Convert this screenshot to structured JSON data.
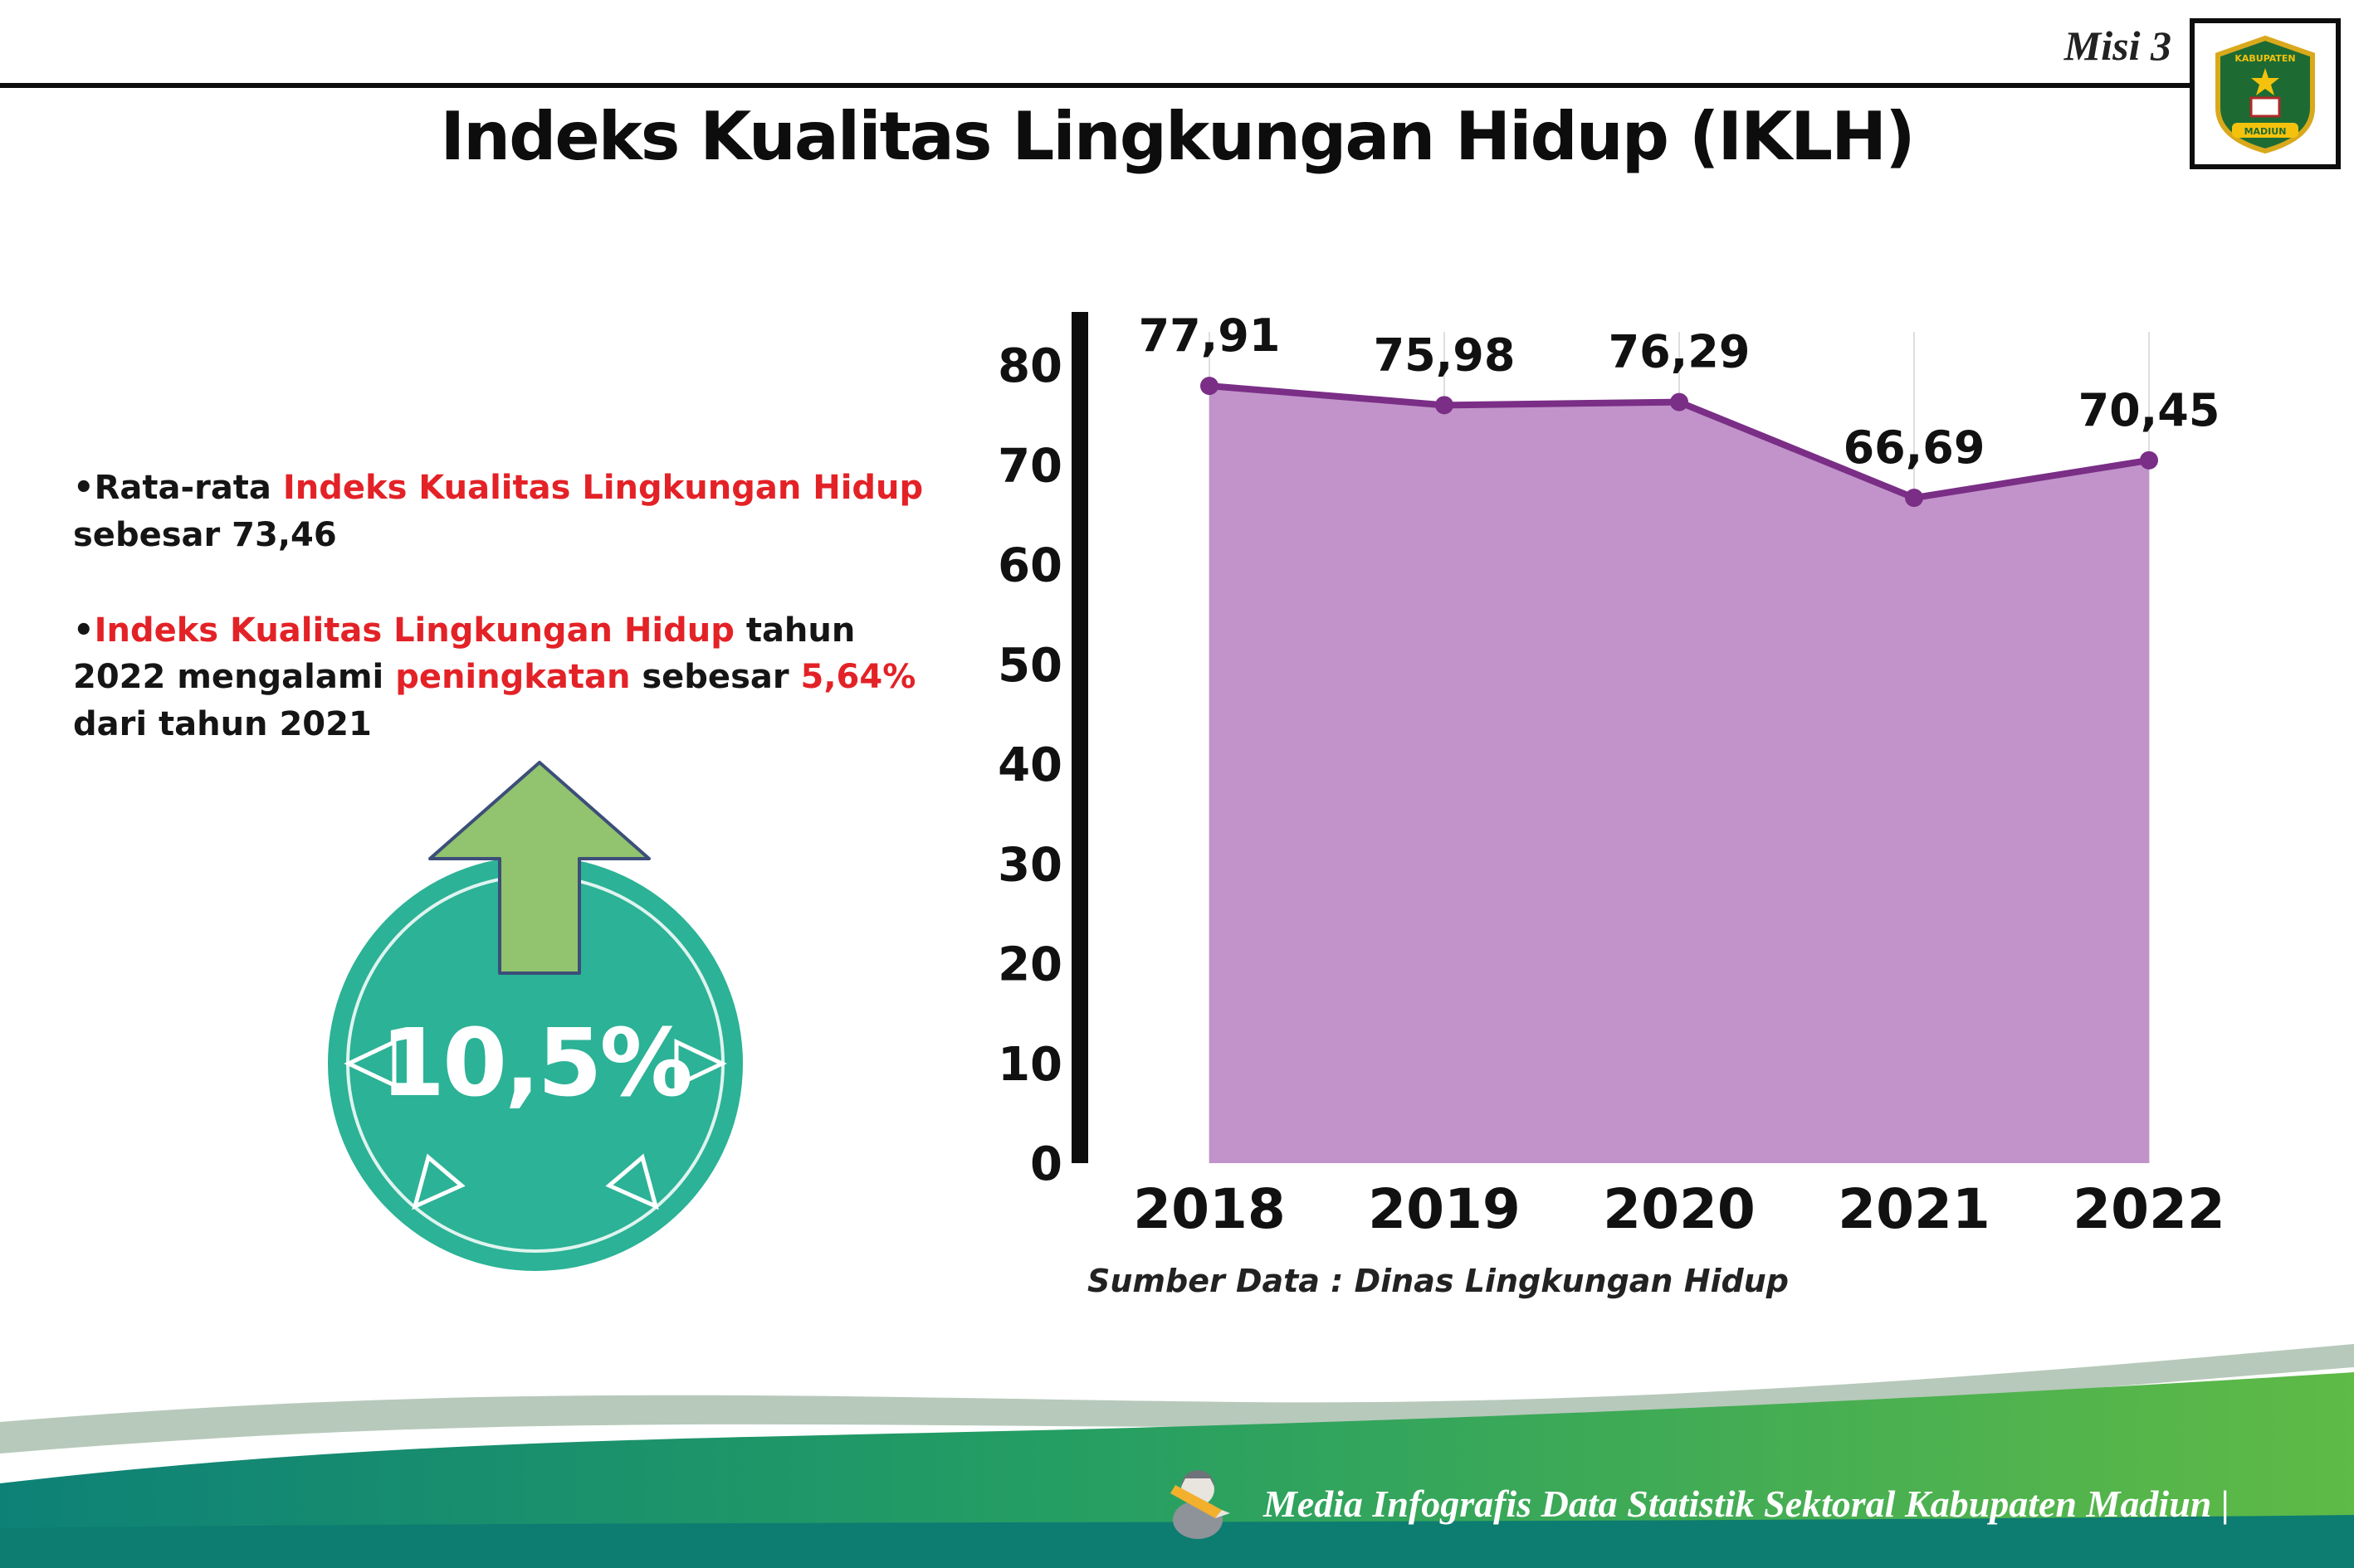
{
  "page": {
    "misi_label": "Misi 3",
    "title": "Indeks Kualitas Lingkungan Hidup (IKLH)"
  },
  "logo": {
    "line1": "KABUPATEN",
    "line2": "MADIUN"
  },
  "bullets": {
    "b1": {
      "seg1": "Rata-rata ",
      "seg2": "Indeks Kualitas Lingkungan Hidup",
      "seg3": " sebesar 73,46"
    },
    "b2": {
      "seg1": "Indeks Kualitas Lingkungan Hidup",
      "seg2": " tahun 2022 mengalami ",
      "seg3": "peningkatan",
      "seg4": " sebesar ",
      "seg5": "5,64%",
      "seg6": " dari tahun 2021"
    }
  },
  "badge": {
    "value": "10,5%"
  },
  "chart_data": {
    "type": "area",
    "title": "Indeks Kualitas Lingkungan Hidup (IKLH)",
    "categories": [
      "2018",
      "2019",
      "2020",
      "2021",
      "2022"
    ],
    "values": [
      77.91,
      75.98,
      76.29,
      66.69,
      70.45
    ],
    "value_labels": [
      "77,91",
      "75,98",
      "76,29",
      "66,69",
      "70,45"
    ],
    "ylim": [
      0,
      80
    ],
    "ytick_step": 10,
    "grid": "vertical-light",
    "legend": "none",
    "colors": {
      "area_fill": "#c193ca",
      "line": "#7a2e86",
      "point": "#7a2e86"
    }
  },
  "source_note": "Sumber Data : Dinas Lingkungan Hidup",
  "footer": {
    "credit": "Media Infografis Data Statistik Sektoral Kabupaten Madiun |"
  },
  "colors": {
    "accent_red": "#e32227",
    "badge_teal": "#2cb296",
    "arrow_green": "#92c36e",
    "footer_teal": "#0e8177",
    "footer_green": "#5fba46"
  }
}
